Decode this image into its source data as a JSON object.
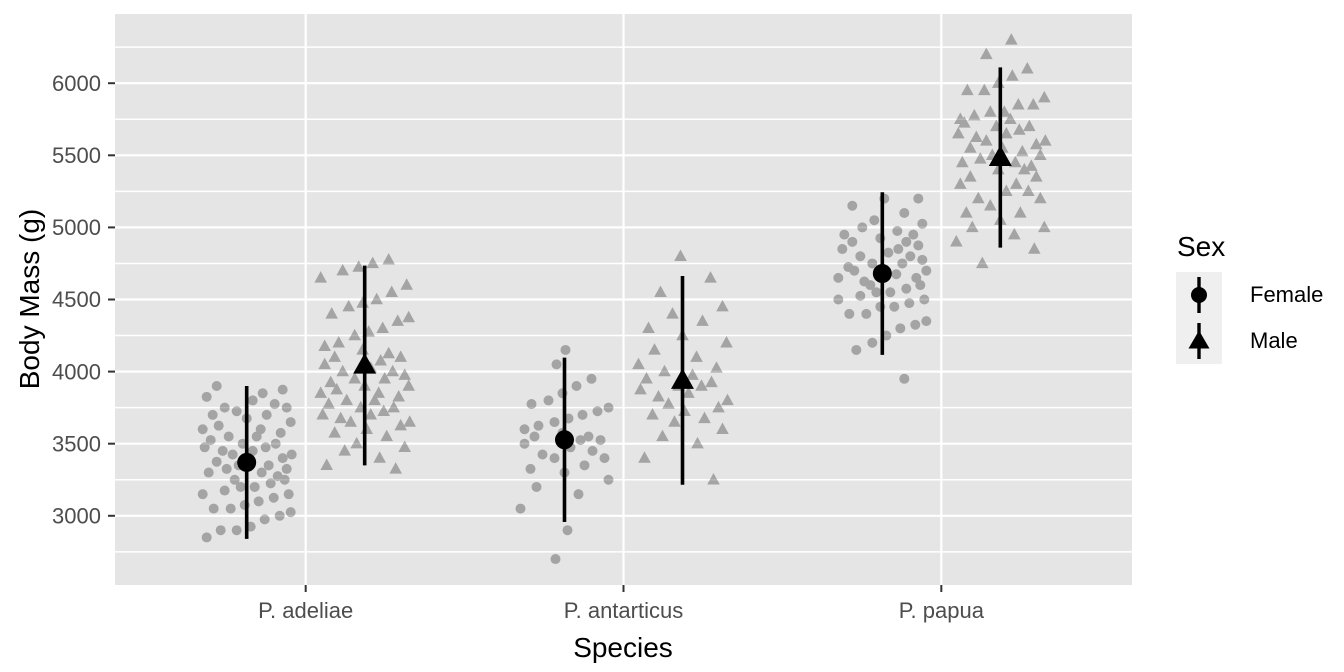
{
  "chart_data": {
    "type": "scatter",
    "subtype": "jittered points with mean ± 2SD pointrange, dodged by sex",
    "title": "",
    "xlabel": "Species",
    "ylabel": "Body Mass (g)",
    "categories": [
      "P. adeliae",
      "P. antarticus",
      "P. papua"
    ],
    "y_ticks": [
      3000,
      3500,
      4000,
      4500,
      5000,
      5500,
      6000
    ],
    "y_minor_ticks": [
      2750,
      3250,
      3750,
      4250,
      4750,
      5250,
      5750,
      6250
    ],
    "y_domain": [
      2520,
      6480
    ],
    "grid": "white major+minor horizontal lines, white major vertical lines on grey panel",
    "legend": {
      "title": "Sex",
      "position": "right",
      "entries": [
        {
          "label": "Female",
          "shape": "circle"
        },
        {
          "label": "Male",
          "shape": "triangle"
        }
      ]
    },
    "colors": {
      "panel_bg": "#e5e5e5",
      "grid": "#ffffff",
      "jitter_point": "#000000",
      "jitter_alpha": 0.28,
      "stat": "#000000",
      "axis_text": "#4d4d4d",
      "title_text": "#000000",
      "tick_mark": "#333333",
      "legend_key_bg": "#efefef"
    },
    "groups": [
      {
        "species": "P. adeliae",
        "species_index": 0,
        "sex": "Female",
        "shape": "circle",
        "mean": 3370,
        "lo": 2840,
        "hi": 3900,
        "points": [
          [
            -40,
            2850
          ],
          [
            -26,
            2900
          ],
          [
            -10,
            2900
          ],
          [
            4,
            2925
          ],
          [
            18,
            2975
          ],
          [
            33,
            3000
          ],
          [
            44,
            3025
          ],
          [
            -33,
            3050
          ],
          [
            -16,
            3050
          ],
          [
            -2,
            3075
          ],
          [
            12,
            3100
          ],
          [
            27,
            3125
          ],
          [
            42,
            3150
          ],
          [
            -44,
            3150
          ],
          [
            -22,
            3175
          ],
          [
            -6,
            3200
          ],
          [
            8,
            3200
          ],
          [
            24,
            3225
          ],
          [
            38,
            3250
          ],
          [
            -12,
            3250
          ],
          [
            31,
            3275
          ],
          [
            -38,
            3300
          ],
          [
            15,
            3300
          ],
          [
            -20,
            3325
          ],
          [
            40,
            3325
          ],
          [
            -8,
            3350
          ],
          [
            22,
            3350
          ],
          [
            -30,
            3375
          ],
          [
            2,
            3400
          ],
          [
            36,
            3400
          ],
          [
            -14,
            3425
          ],
          [
            45,
            3425
          ],
          [
            -24,
            3450
          ],
          [
            6,
            3450
          ],
          [
            -42,
            3475
          ],
          [
            19,
            3475
          ],
          [
            -4,
            3500
          ],
          [
            29,
            3500
          ],
          [
            -36,
            3525
          ],
          [
            10,
            3550
          ],
          [
            -18,
            3550
          ],
          [
            34,
            3575
          ],
          [
            -44,
            3600
          ],
          [
            14,
            3600
          ],
          [
            -28,
            3625
          ],
          [
            44,
            3650
          ],
          [
            0,
            3675
          ],
          [
            -34,
            3700
          ],
          [
            20,
            3700
          ],
          [
            -10,
            3725
          ],
          [
            40,
            3750
          ],
          [
            -22,
            3750
          ],
          [
            28,
            3775
          ],
          [
            6,
            3800
          ],
          [
            -40,
            3825
          ],
          [
            16,
            3850
          ],
          [
            36,
            3875
          ],
          [
            -30,
            3900
          ]
        ]
      },
      {
        "species": "P. adeliae",
        "species_index": 0,
        "sex": "Male",
        "shape": "triangle",
        "mean": 4045,
        "lo": 3350,
        "hi": 4735,
        "points": [
          [
            31,
            3325
          ],
          [
            -38,
            3350
          ],
          [
            15,
            3400
          ],
          [
            -20,
            3450
          ],
          [
            40,
            3475
          ],
          [
            -8,
            3500
          ],
          [
            22,
            3550
          ],
          [
            -30,
            3575
          ],
          [
            2,
            3600
          ],
          [
            36,
            3625
          ],
          [
            -14,
            3650
          ],
          [
            45,
            3650
          ],
          [
            -24,
            3675
          ],
          [
            6,
            3700
          ],
          [
            -42,
            3700
          ],
          [
            19,
            3725
          ],
          [
            -4,
            3750
          ],
          [
            29,
            3750
          ],
          [
            -36,
            3775
          ],
          [
            10,
            3800
          ],
          [
            -18,
            3800
          ],
          [
            34,
            3825
          ],
          [
            -44,
            3850
          ],
          [
            14,
            3850
          ],
          [
            -28,
            3875
          ],
          [
            44,
            3900
          ],
          [
            0,
            3900
          ],
          [
            -34,
            3925
          ],
          [
            20,
            3950
          ],
          [
            -10,
            3950
          ],
          [
            40,
            3975
          ],
          [
            -22,
            4000
          ],
          [
            28,
            4000
          ],
          [
            6,
            4025
          ],
          [
            -40,
            4050
          ],
          [
            16,
            4075
          ],
          [
            36,
            4100
          ],
          [
            -30,
            4100
          ],
          [
            24,
            4125
          ],
          [
            -2,
            4150
          ],
          [
            -40,
            4175
          ],
          [
            -26,
            4200
          ],
          [
            -10,
            4250
          ],
          [
            4,
            4275
          ],
          [
            18,
            4300
          ],
          [
            33,
            4350
          ],
          [
            44,
            4375
          ],
          [
            -33,
            4400
          ],
          [
            -16,
            4450
          ],
          [
            -2,
            4475
          ],
          [
            12,
            4500
          ],
          [
            27,
            4550
          ],
          [
            42,
            4600
          ],
          [
            -44,
            4650
          ],
          [
            -22,
            4700
          ],
          [
            -6,
            4725
          ],
          [
            8,
            4750
          ],
          [
            24,
            4775
          ]
        ]
      },
      {
        "species": "P. antarticus",
        "species_index": 1,
        "sex": "Female",
        "shape": "circle",
        "mean": 3527,
        "lo": 2957,
        "hi": 4097,
        "points": [
          [
            -9,
            2700
          ],
          [
            3,
            2900
          ],
          [
            -44,
            3050
          ],
          [
            14,
            3150
          ],
          [
            -28,
            3200
          ],
          [
            44,
            3250
          ],
          [
            0,
            3300
          ],
          [
            -34,
            3325
          ],
          [
            20,
            3350
          ],
          [
            -10,
            3400
          ],
          [
            40,
            3400
          ],
          [
            -22,
            3425
          ],
          [
            28,
            3450
          ],
          [
            6,
            3475
          ],
          [
            -40,
            3500
          ],
          [
            16,
            3525
          ],
          [
            36,
            3525
          ],
          [
            -30,
            3550
          ],
          [
            24,
            3550
          ],
          [
            -2,
            3575
          ],
          [
            -40,
            3600
          ],
          [
            -26,
            3625
          ],
          [
            -10,
            3650
          ],
          [
            4,
            3675
          ],
          [
            18,
            3700
          ],
          [
            33,
            3725
          ],
          [
            44,
            3750
          ],
          [
            -33,
            3775
          ],
          [
            -16,
            3800
          ],
          [
            -2,
            3850
          ],
          [
            12,
            3900
          ],
          [
            27,
            3950
          ],
          [
            -8,
            4050
          ],
          [
            1,
            4150
          ]
        ]
      },
      {
        "species": "P. antarticus",
        "species_index": 1,
        "sex": "Male",
        "shape": "triangle",
        "mean": 3939,
        "lo": 3215,
        "hi": 4663,
        "points": [
          [
            31,
            3250
          ],
          [
            -38,
            3400
          ],
          [
            15,
            3500
          ],
          [
            -20,
            3550
          ],
          [
            40,
            3600
          ],
          [
            -8,
            3650
          ],
          [
            22,
            3675
          ],
          [
            -30,
            3700
          ],
          [
            2,
            3725
          ],
          [
            36,
            3750
          ],
          [
            -14,
            3775
          ],
          [
            45,
            3800
          ],
          [
            -24,
            3825
          ],
          [
            6,
            3850
          ],
          [
            -42,
            3875
          ],
          [
            19,
            3900
          ],
          [
            -4,
            3900
          ],
          [
            29,
            3925
          ],
          [
            -36,
            3950
          ],
          [
            10,
            3975
          ],
          [
            -18,
            4000
          ],
          [
            34,
            4025
          ],
          [
            -44,
            4050
          ],
          [
            14,
            4100
          ],
          [
            -28,
            4150
          ],
          [
            44,
            4200
          ],
          [
            0,
            4250
          ],
          [
            -34,
            4300
          ],
          [
            20,
            4350
          ],
          [
            -10,
            4400
          ],
          [
            40,
            4450
          ],
          [
            -22,
            4550
          ],
          [
            28,
            4650
          ],
          [
            -2,
            4800
          ]
        ]
      },
      {
        "species": "P. papua",
        "species_index": 2,
        "sex": "Female",
        "shape": "circle",
        "mean": 4680,
        "lo": 4116,
        "hi": 5244,
        "points": [
          [
            22,
            3950
          ],
          [
            -26,
            4150
          ],
          [
            -10,
            4200
          ],
          [
            4,
            4250
          ],
          [
            18,
            4300
          ],
          [
            33,
            4325
          ],
          [
            44,
            4350
          ],
          [
            -33,
            4400
          ],
          [
            -16,
            4400
          ],
          [
            -2,
            4450
          ],
          [
            12,
            4450
          ],
          [
            27,
            4475
          ],
          [
            42,
            4500
          ],
          [
            -44,
            4500
          ],
          [
            -22,
            4525
          ],
          [
            -6,
            4550
          ],
          [
            8,
            4550
          ],
          [
            24,
            4575
          ],
          [
            38,
            4600
          ],
          [
            -12,
            4600
          ],
          [
            -18,
            4625
          ],
          [
            34,
            4650
          ],
          [
            -44,
            4650
          ],
          [
            14,
            4675
          ],
          [
            -28,
            4700
          ],
          [
            44,
            4700
          ],
          [
            0,
            4700
          ],
          [
            -34,
            4725
          ],
          [
            20,
            4750
          ],
          [
            -10,
            4750
          ],
          [
            40,
            4775
          ],
          [
            -22,
            4800
          ],
          [
            28,
            4800
          ],
          [
            6,
            4825
          ],
          [
            -40,
            4850
          ],
          [
            16,
            4850
          ],
          [
            36,
            4875
          ],
          [
            -30,
            4900
          ],
          [
            24,
            4900
          ],
          [
            -2,
            4925
          ],
          [
            31,
            4950
          ],
          [
            -38,
            4950
          ],
          [
            15,
            4975
          ],
          [
            -20,
            5000
          ],
          [
            40,
            5025
          ],
          [
            -8,
            5050
          ],
          [
            22,
            5100
          ],
          [
            -30,
            5150
          ],
          [
            2,
            5200
          ],
          [
            36,
            5200
          ]
        ]
      },
      {
        "species": "P. papua",
        "species_index": 2,
        "sex": "Male",
        "shape": "triangle",
        "mean": 5485,
        "lo": 4860,
        "hi": 6110,
        "points": [
          [
            -18,
            4750
          ],
          [
            34,
            4850
          ],
          [
            -44,
            4900
          ],
          [
            14,
            4950
          ],
          [
            -28,
            5000
          ],
          [
            44,
            5000
          ],
          [
            0,
            5050
          ],
          [
            -34,
            5100
          ],
          [
            20,
            5100
          ],
          [
            -10,
            5150
          ],
          [
            40,
            5200
          ],
          [
            -22,
            5200
          ],
          [
            28,
            5250
          ],
          [
            6,
            5250
          ],
          [
            -40,
            5300
          ],
          [
            16,
            5300
          ],
          [
            36,
            5350
          ],
          [
            -30,
            5350
          ],
          [
            24,
            5400
          ],
          [
            -2,
            5400
          ],
          [
            31,
            5425
          ],
          [
            -38,
            5450
          ],
          [
            15,
            5450
          ],
          [
            -20,
            5475
          ],
          [
            40,
            5500
          ],
          [
            -8,
            5500
          ],
          [
            22,
            5525
          ],
          [
            -30,
            5550
          ],
          [
            2,
            5550
          ],
          [
            36,
            5575
          ],
          [
            -14,
            5600
          ],
          [
            45,
            5600
          ],
          [
            -24,
            5625
          ],
          [
            6,
            5650
          ],
          [
            -42,
            5650
          ],
          [
            19,
            5675
          ],
          [
            -4,
            5700
          ],
          [
            29,
            5700
          ],
          [
            -36,
            5725
          ],
          [
            10,
            5750
          ],
          [
            -40,
            5750
          ],
          [
            -26,
            5775
          ],
          [
            -10,
            5800
          ],
          [
            4,
            5800
          ],
          [
            18,
            5850
          ],
          [
            33,
            5850
          ],
          [
            44,
            5900
          ],
          [
            -33,
            5950
          ],
          [
            -16,
            5950
          ],
          [
            -2,
            6000
          ],
          [
            12,
            6050
          ],
          [
            27,
            6100
          ],
          [
            -14,
            6200
          ],
          [
            11,
            6300
          ]
        ]
      }
    ]
  }
}
